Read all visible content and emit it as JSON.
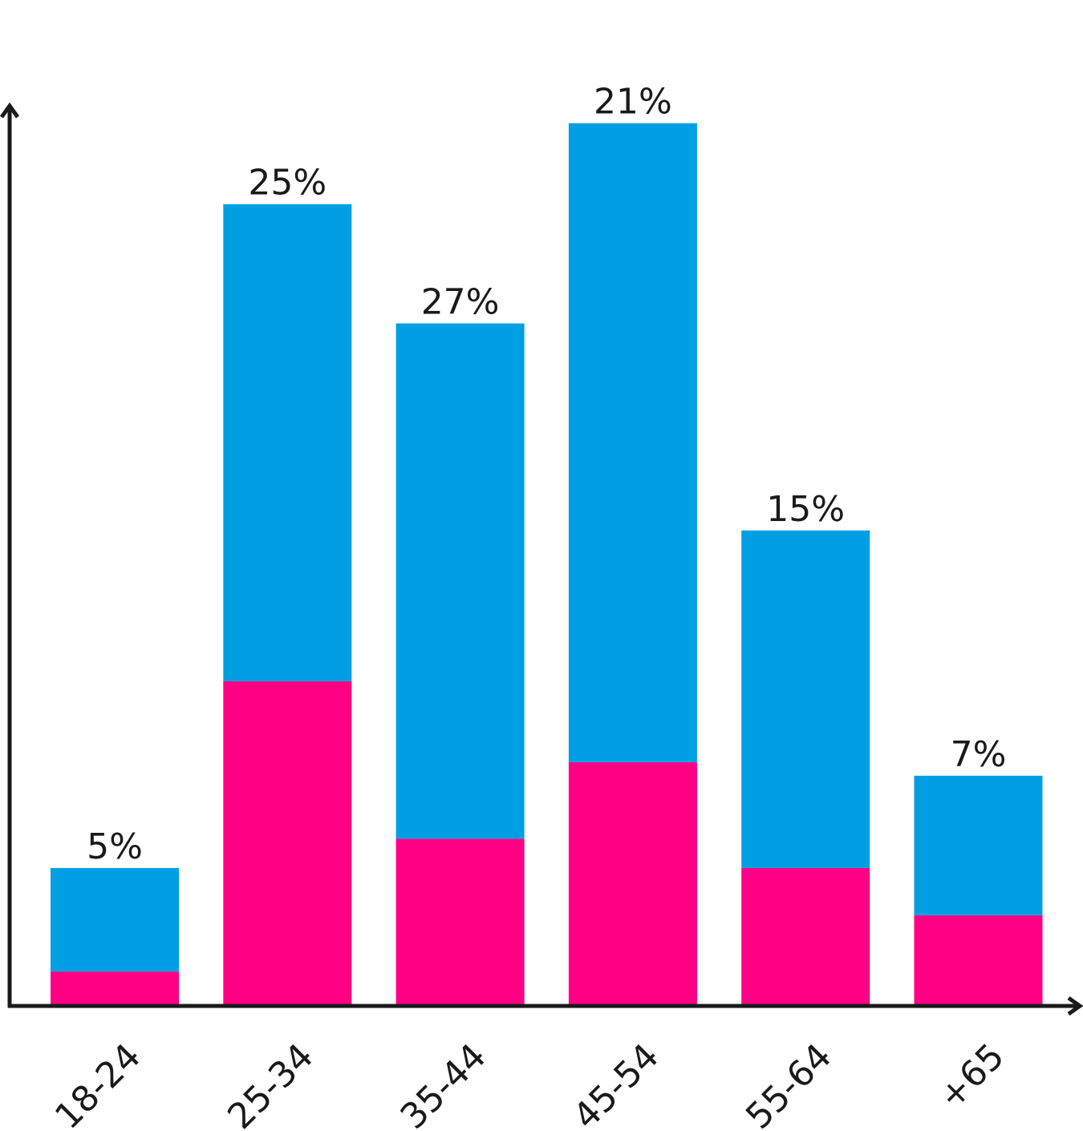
{
  "chart_data": {
    "type": "bar",
    "stacked": true,
    "categories": [
      "18-24",
      "25-34",
      "35-44",
      "45-54",
      "55-64",
      "+65"
    ],
    "series": [
      {
        "values": [
          1.6,
          14.5,
          7.5,
          10.9,
          6.2,
          4.1
        ],
        "color": "#ff0084"
      },
      {
        "values": [
          4.6,
          21.2,
          22.9,
          28.4,
          15.0,
          6.2
        ],
        "color": "#009fe3"
      }
    ],
    "data_labels": [
      "5%",
      "25%",
      "27%",
      "21%",
      "15%",
      "7%"
    ],
    "ylim": [
      0,
      40
    ],
    "grid": false,
    "legend": "none",
    "axis_color": "#1a1a1a"
  }
}
